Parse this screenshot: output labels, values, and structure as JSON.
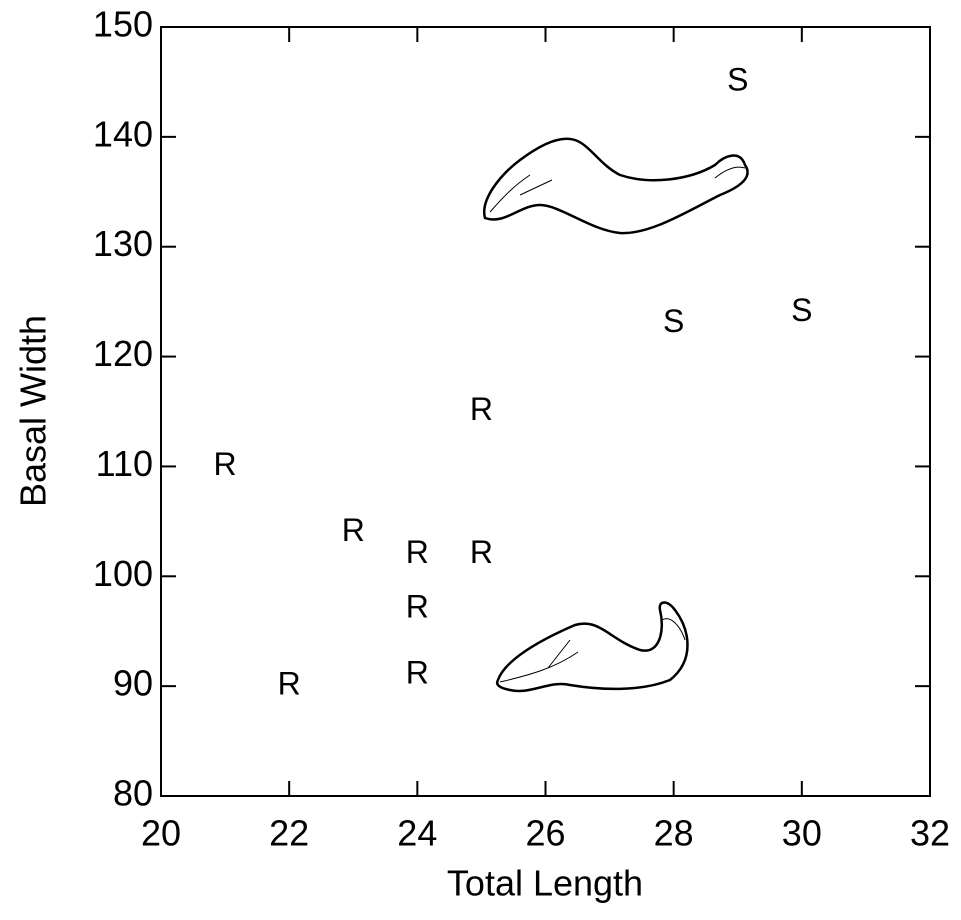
{
  "chart_data": {
    "type": "scatter",
    "x_label": "Total Length",
    "y_label": "Basal Width",
    "series": [
      {
        "name": "R",
        "color": "#000000",
        "x": [
          21,
          22,
          23,
          24,
          24,
          24,
          25,
          25
        ],
        "values": [
          110,
          90,
          104,
          102,
          97,
          91,
          115,
          102
        ]
      },
      {
        "name": "S",
        "color": "#000000",
        "x": [
          28,
          29,
          30
        ],
        "values": [
          123,
          145,
          124
        ]
      }
    ],
    "xlim": [
      20,
      32
    ],
    "xticks": [
      20,
      22,
      24,
      26,
      28,
      30,
      32
    ],
    "ylim": [
      80,
      150
    ],
    "yticks": [
      80,
      90,
      100,
      110,
      120,
      130,
      140,
      150
    ]
  }
}
